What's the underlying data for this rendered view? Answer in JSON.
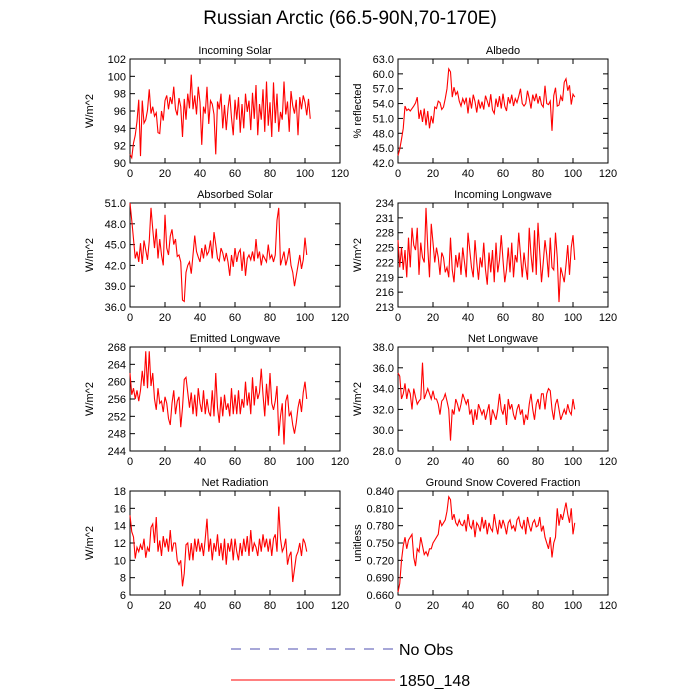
{
  "title": "Russian Arctic (66.5-90N,70-170E)",
  "colors": {
    "series": "#ff0000",
    "obs": "#4f4fb0",
    "frame": "#000000"
  },
  "legend": [
    {
      "label": "No Obs",
      "style": "dashed",
      "color": "#4f4fb0"
    },
    {
      "label": "1850_148",
      "style": "solid",
      "color": "#ff0000"
    }
  ],
  "chart_data": [
    {
      "type": "line",
      "title": "Incoming Solar",
      "ylabel": "W/m^2",
      "xlim": [
        0,
        120
      ],
      "xticks": [
        0,
        20,
        40,
        60,
        80,
        100,
        120
      ],
      "ylim": [
        90,
        102
      ],
      "yticks": [
        90,
        92,
        94,
        96,
        98,
        100,
        102
      ],
      "ydecimals": 0,
      "series": [
        {
          "values": [
            91.0,
            90.6,
            92.3,
            93.2,
            94.8,
            97.3,
            90.8,
            97.2,
            94.6,
            95.0,
            96.1,
            98.5,
            95.7,
            96.5,
            95.4,
            95.8,
            93.5,
            93.4,
            96.0,
            94.9,
            97.2,
            97.8,
            96.2,
            97.6,
            96.8,
            98.8,
            96.2,
            95.5,
            97.5,
            96.5,
            93.0,
            97.4,
            95.0,
            98.0,
            96.3,
            100.2,
            96.2,
            97.8,
            95.6,
            98.8,
            97.0,
            92.1,
            96.5,
            95.7,
            98.8,
            94.5,
            97.2,
            96.8,
            95.6,
            91.0,
            97.1,
            96.2,
            98.0,
            94.0,
            96.7,
            93.8,
            96.3,
            97.9,
            95.2,
            93.2,
            97.3,
            95.0,
            97.6,
            93.5,
            96.8,
            94.0,
            98.0,
            95.9,
            97.2,
            93.8,
            98.1,
            95.1,
            99.0,
            93.2,
            96.8,
            95.0,
            98.5,
            93.6,
            99.4,
            94.3,
            97.0,
            93.0,
            99.3,
            94.6,
            98.0,
            93.6,
            95.9,
            95.0,
            99.4,
            95.6,
            97.1,
            93.6,
            98.3,
            96.6,
            95.7,
            97.3,
            93.2,
            97.6,
            96.2,
            97.8,
            97.0,
            95.5,
            97.4,
            95.1
          ]
        }
      ]
    },
    {
      "type": "line",
      "title": "Albedo",
      "ylabel": "% reflected",
      "xlim": [
        0,
        120
      ],
      "xticks": [
        0,
        20,
        40,
        60,
        80,
        100,
        120
      ],
      "ylim": [
        42,
        63
      ],
      "yticks": [
        42,
        45,
        48,
        51,
        54,
        57,
        60,
        63
      ],
      "ydecimals": 1,
      "series": [
        {
          "values": [
            43.5,
            44.8,
            46.8,
            49.0,
            53.5,
            52.6,
            52.9,
            52.5,
            53.0,
            53.5,
            54.1,
            55.3,
            50.9,
            52.7,
            50.3,
            53.0,
            49.6,
            52.5,
            49.0,
            51.5,
            50.0,
            53.3,
            53.0,
            54.5,
            54.2,
            52.8,
            53.3,
            55.0,
            57.0,
            61.0,
            60.4,
            55.3,
            57.3,
            55.8,
            56.4,
            54.5,
            53.5,
            55.0,
            54.0,
            55.2,
            52.0,
            55.2,
            53.0,
            55.8,
            54.4,
            52.2,
            54.8,
            53.0,
            54.4,
            52.8,
            55.6,
            54.5,
            53.3,
            55.9,
            52.7,
            52.0,
            55.0,
            53.3,
            55.5,
            53.0,
            56.0,
            53.5,
            52.5,
            55.3,
            54.0,
            55.8,
            53.5,
            55.0,
            54.2,
            55.5,
            57.0,
            54.0,
            53.5,
            54.0,
            56.6,
            55.0,
            53.0,
            55.8,
            54.5,
            56.0,
            54.0,
            55.5,
            53.8,
            53.3,
            57.6,
            54.0,
            53.8,
            54.5,
            48.5,
            55.6,
            57.2,
            53.5,
            53.7,
            55.5,
            54.5,
            58.3,
            59.0,
            56.6,
            57.7,
            53.8,
            55.9,
            55.3
          ]
        }
      ]
    },
    {
      "type": "line",
      "title": "Absorbed Solar",
      "ylabel": "W/m^2",
      "xlim": [
        0,
        120
      ],
      "xticks": [
        0,
        20,
        40,
        60,
        80,
        100,
        120
      ],
      "ylim": [
        36,
        51
      ],
      "yticks": [
        36,
        39,
        42,
        45,
        48,
        51
      ],
      "ydecimals": 1,
      "series": [
        {
          "values": [
            51.0,
            48.5,
            45.8,
            43.0,
            44.0,
            42.5,
            45.2,
            42.2,
            45.6,
            44.2,
            42.8,
            45.5,
            50.3,
            47.2,
            44.5,
            47.3,
            43.0,
            45.8,
            43.5,
            42.0,
            49.3,
            44.5,
            43.5,
            46.2,
            47.2,
            45.0,
            45.8,
            43.3,
            43.5,
            42.5,
            37.0,
            36.8,
            41.0,
            42.0,
            42.5,
            40.8,
            43.5,
            46.3,
            44.0,
            43.2,
            42.5,
            44.5,
            43.0,
            45.0,
            43.5,
            44.0,
            45.6,
            43.0,
            46.8,
            45.0,
            43.0,
            42.6,
            44.5,
            43.8,
            42.6,
            43.8,
            42.5,
            40.5,
            43.5,
            41.8,
            44.5,
            42.5,
            43.8,
            44.3,
            41.2,
            44.0,
            40.5,
            43.0,
            43.5,
            42.8,
            44.0,
            42.6,
            45.8,
            43.0,
            44.0,
            42.0,
            43.5,
            43.0,
            42.5,
            45.0,
            43.0,
            43.5,
            42.5,
            43.5,
            48.5,
            50.3,
            42.0,
            43.0,
            44.0,
            42.0,
            43.0,
            44.5,
            42.0,
            41.0,
            39.0,
            40.5,
            42.0,
            43.5,
            41.5,
            42.8,
            46.0,
            43.5
          ]
        }
      ]
    },
    {
      "type": "line",
      "title": "Incoming Longwave",
      "ylabel": "W/m^2",
      "xlim": [
        0,
        120
      ],
      "xticks": [
        0,
        20,
        40,
        60,
        80,
        100,
        120
      ],
      "ylim": [
        213,
        234
      ],
      "yticks": [
        213,
        216,
        219,
        222,
        225,
        228,
        231,
        234
      ],
      "ydecimals": 0,
      "series": [
        {
          "values": [
            226.5,
            221.0,
            225.0,
            220.5,
            224.5,
            219.0,
            227.0,
            221.0,
            229.0,
            225.5,
            224.5,
            229.0,
            219.5,
            226.0,
            223.0,
            222.0,
            233.0,
            225.0,
            219.0,
            229.8,
            226.0,
            222.0,
            225.0,
            223.0,
            219.5,
            224.0,
            223.0,
            220.0,
            221.0,
            219.0,
            227.0,
            220.5,
            218.0,
            223.5,
            221.0,
            224.0,
            219.5,
            225.0,
            222.0,
            219.0,
            228.0,
            224.5,
            221.0,
            219.0,
            226.5,
            222.0,
            218.5,
            223.0,
            221.0,
            226.0,
            220.5,
            217.5,
            224.0,
            220.0,
            224.5,
            218.0,
            226.0,
            220.0,
            222.5,
            227.5,
            222.5,
            218.0,
            220.5,
            225.0,
            220.0,
            226.0,
            219.0,
            223.5,
            222.0,
            228.0,
            223.5,
            219.0,
            224.0,
            221.0,
            218.5,
            229.0,
            223.5,
            220.0,
            228.5,
            219.5,
            230.0,
            224.0,
            218.0,
            222.0,
            226.5,
            223.5,
            219.0,
            227.0,
            221.0,
            220.5,
            228.0,
            223.0,
            214.0,
            221.0,
            219.5,
            218.0,
            221.5,
            225.5,
            219.5,
            225.0,
            227.5,
            222.5
          ]
        }
      ]
    },
    {
      "type": "line",
      "title": "Emitted Longwave",
      "ylabel": "W/m^2",
      "xlim": [
        0,
        120
      ],
      "xticks": [
        0,
        20,
        40,
        60,
        80,
        100,
        120
      ],
      "ylim": [
        244,
        268
      ],
      "yticks": [
        244,
        248,
        252,
        256,
        260,
        264,
        268
      ],
      "ydecimals": 0,
      "series": [
        {
          "values": [
            262.0,
            257.0,
            258.5,
            256.0,
            258.0,
            255.5,
            258.0,
            262.5,
            259.0,
            267.0,
            258.5,
            267.0,
            259.0,
            262.0,
            256.0,
            253.5,
            258.5,
            255.0,
            255.5,
            253.0,
            256.5,
            255.0,
            251.5,
            250.0,
            255.0,
            258.0,
            252.5,
            255.5,
            256.5,
            249.5,
            254.0,
            260.5,
            261.0,
            257.5,
            254.0,
            257.5,
            252.5,
            257.0,
            252.0,
            258.5,
            255.0,
            253.0,
            258.0,
            252.5,
            256.0,
            253.0,
            252.0,
            258.0,
            252.0,
            262.0,
            254.0,
            250.5,
            256.5,
            252.0,
            257.0,
            253.5,
            255.0,
            252.0,
            258.5,
            252.5,
            257.0,
            252.5,
            258.0,
            252.5,
            256.0,
            254.0,
            260.0,
            254.5,
            257.5,
            252.5,
            261.0,
            254.5,
            259.0,
            256.0,
            257.5,
            263.0,
            257.0,
            252.0,
            259.5,
            254.5,
            262.0,
            255.0,
            253.5,
            255.5,
            259.0,
            247.5,
            252.0,
            255.0,
            245.5,
            255.5,
            257.0,
            252.0,
            253.0,
            250.0,
            248.0,
            250.5,
            254.0,
            256.0,
            253.0,
            257.5,
            260.0,
            256.0
          ]
        }
      ]
    },
    {
      "type": "line",
      "title": "Net Longwave",
      "ylabel": "W/m^2",
      "xlim": [
        0,
        120
      ],
      "xticks": [
        0,
        20,
        40,
        60,
        80,
        100,
        120
      ],
      "ylim": [
        28,
        38
      ],
      "yticks": [
        28,
        30,
        32,
        34,
        36,
        38
      ],
      "ydecimals": 1,
      "series": [
        {
          "values": [
            35.5,
            35.2,
            33.0,
            33.5,
            34.5,
            33.0,
            34.0,
            33.5,
            32.0,
            34.0,
            33.2,
            32.5,
            32.8,
            33.0,
            36.5,
            33.0,
            33.5,
            34.0,
            33.5,
            33.0,
            33.8,
            33.0,
            33.0,
            32.5,
            31.5,
            32.8,
            33.0,
            33.5,
            32.8,
            32.0,
            29.0,
            32.0,
            31.5,
            33.0,
            32.5,
            31.8,
            32.5,
            33.5,
            33.0,
            32.5,
            33.0,
            31.5,
            32.0,
            30.5,
            32.0,
            31.0,
            32.5,
            32.0,
            31.5,
            32.0,
            31.0,
            31.8,
            32.5,
            30.5,
            32.0,
            31.5,
            31.0,
            32.0,
            33.5,
            32.0,
            31.5,
            32.5,
            30.5,
            33.0,
            32.0,
            32.5,
            31.5,
            31.0,
            32.0,
            32.5,
            31.5,
            32.0,
            30.5,
            31.5,
            31.0,
            32.5,
            33.5,
            32.0,
            31.0,
            32.5,
            33.0,
            32.0,
            33.5,
            33.5,
            32.0,
            33.5,
            34.0,
            33.8,
            32.0,
            31.0,
            32.5,
            33.0,
            32.0,
            31.0,
            31.5,
            32.0,
            31.5,
            32.5,
            31.8,
            31.5,
            33.0,
            32.0
          ]
        }
      ]
    },
    {
      "type": "line",
      "title": "Net Radiation",
      "ylabel": "W/m^2",
      "xlim": [
        0,
        120
      ],
      "xticks": [
        0,
        20,
        40,
        60,
        80,
        100,
        120
      ],
      "ylim": [
        6,
        18
      ],
      "yticks": [
        6,
        8,
        10,
        12,
        14,
        16,
        18
      ],
      "ydecimals": 0,
      "series": [
        {
          "values": [
            15.2,
            13.3,
            12.7,
            10.2,
            11.5,
            11.0,
            11.8,
            11.2,
            12.5,
            10.3,
            11.5,
            11.0,
            13.8,
            14.2,
            12.0,
            15.0,
            11.0,
            12.3,
            10.5,
            12.8,
            11.5,
            12.5,
            11.0,
            13.5,
            11.0,
            12.0,
            12.0,
            10.0,
            9.5,
            10.0,
            7.0,
            8.5,
            11.8,
            12.0,
            10.0,
            12.0,
            10.0,
            12.5,
            11.0,
            12.5,
            11.0,
            12.0,
            10.5,
            12.5,
            14.8,
            11.0,
            12.5,
            10.0,
            12.0,
            11.0,
            13.0,
            10.5,
            12.0,
            10.0,
            12.5,
            9.5,
            12.0,
            11.0,
            12.5,
            10.0,
            12.5,
            11.0,
            10.0,
            12.0,
            10.5,
            12.5,
            11.0,
            12.8,
            10.5,
            13.5,
            11.0,
            12.0,
            11.5,
            10.5,
            12.5,
            11.0,
            13.0,
            11.5,
            12.5,
            11.0,
            12.5,
            10.5,
            12.5,
            13.0,
            11.0,
            16.2,
            12.5,
            11.0,
            11.5,
            12.5,
            9.5,
            10.5,
            11.0,
            7.5,
            9.0,
            10.5,
            11.0,
            12.0,
            10.5,
            12.5,
            12.0,
            11.0
          ]
        }
      ]
    },
    {
      "type": "line",
      "title": "Ground Snow Covered Fraction",
      "ylabel": "unitless",
      "xlim": [
        0,
        120
      ],
      "xticks": [
        0,
        20,
        40,
        60,
        80,
        100,
        120
      ],
      "ylim": [
        0.66,
        0.84
      ],
      "yticks": [
        0.66,
        0.69,
        0.72,
        0.75,
        0.78,
        0.81,
        0.84
      ],
      "ydecimals": 3,
      "series": [
        {
          "values": [
            0.665,
            0.68,
            0.72,
            0.745,
            0.76,
            0.74,
            0.755,
            0.76,
            0.765,
            0.725,
            0.71,
            0.74,
            0.735,
            0.76,
            0.745,
            0.73,
            0.735,
            0.728,
            0.74,
            0.74,
            0.75,
            0.755,
            0.76,
            0.765,
            0.79,
            0.78,
            0.785,
            0.79,
            0.805,
            0.83,
            0.825,
            0.79,
            0.8,
            0.785,
            0.78,
            0.79,
            0.782,
            0.78,
            0.79,
            0.77,
            0.8,
            0.78,
            0.775,
            0.79,
            0.76,
            0.785,
            0.78,
            0.77,
            0.795,
            0.775,
            0.79,
            0.765,
            0.785,
            0.775,
            0.77,
            0.8,
            0.78,
            0.765,
            0.79,
            0.775,
            0.79,
            0.78,
            0.765,
            0.785,
            0.79,
            0.775,
            0.78,
            0.77,
            0.79,
            0.795,
            0.78,
            0.775,
            0.79,
            0.765,
            0.795,
            0.78,
            0.77,
            0.785,
            0.79,
            0.778,
            0.78,
            0.795,
            0.77,
            0.78,
            0.76,
            0.75,
            0.74,
            0.76,
            0.725,
            0.75,
            0.76,
            0.81,
            0.78,
            0.8,
            0.79,
            0.805,
            0.82,
            0.8,
            0.785,
            0.81,
            0.765,
            0.785
          ]
        }
      ]
    }
  ]
}
